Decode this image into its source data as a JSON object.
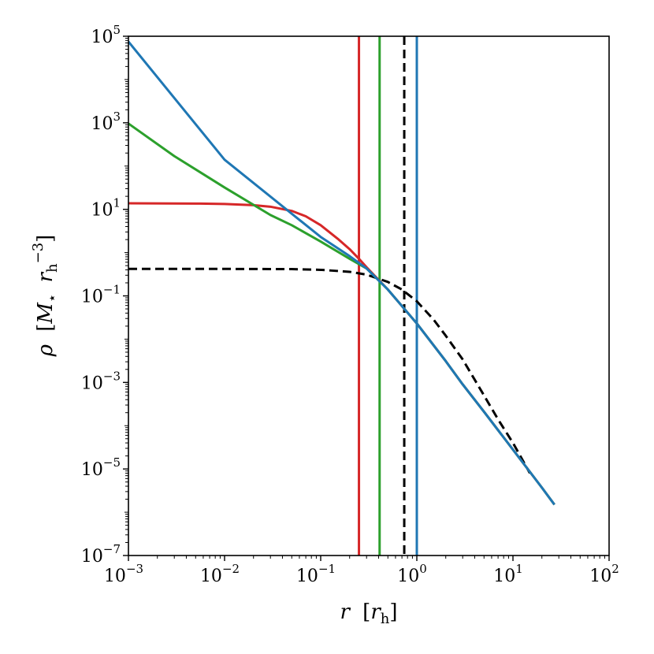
{
  "chart_data": {
    "type": "line",
    "title": "",
    "xlabel": {
      "symbol": "r",
      "unit_symbol": "r",
      "unit_subscript": "h"
    },
    "ylabel": {
      "symbol": "ρ",
      "unit_mass": "M",
      "unit_mass_subscript": "⋆",
      "unit_radius": "r",
      "unit_radius_subscript": "h",
      "unit_radius_power": "−3"
    },
    "xscale": "log",
    "yscale": "log",
    "xlim": [
      0.001,
      100
    ],
    "ylim": [
      1e-07,
      100000
    ],
    "grid": false,
    "xticks": [
      {
        "value": 0.001,
        "base": "10",
        "exp": "−3"
      },
      {
        "value": 0.01,
        "base": "10",
        "exp": "−2"
      },
      {
        "value": 0.1,
        "base": "10",
        "exp": "−1"
      },
      {
        "value": 1,
        "base": "10",
        "exp": "0"
      },
      {
        "value": 10,
        "base": "10",
        "exp": "1"
      },
      {
        "value": 100,
        "base": "10",
        "exp": "2"
      }
    ],
    "yticks": [
      {
        "value": 1e-07,
        "base": "10",
        "exp": "−7"
      },
      {
        "value": 1e-05,
        "base": "10",
        "exp": "−5"
      },
      {
        "value": 0.001,
        "base": "10",
        "exp": "−3"
      },
      {
        "value": 0.1,
        "base": "10",
        "exp": "−1"
      },
      {
        "value": 10,
        "base": "10",
        "exp": "1"
      },
      {
        "value": 1000,
        "base": "10",
        "exp": "3"
      },
      {
        "value": 100000,
        "base": "10",
        "exp": "5"
      }
    ],
    "series": [
      {
        "color": "#000000",
        "style": "dashed",
        "x": [
          0.001,
          0.01,
          0.05,
          0.1,
          0.2,
          0.3,
          0.5,
          0.7,
          1,
          1.5,
          2,
          3,
          5,
          7,
          10,
          15
        ],
        "y": [
          0.42,
          0.42,
          0.415,
          0.4,
          0.36,
          0.31,
          0.21,
          0.14,
          0.075,
          0.028,
          0.012,
          0.0034,
          0.0005,
          0.00014,
          4e-05,
          8e-06
        ]
      },
      {
        "color": "#d62728",
        "style": "solid",
        "x": [
          0.001,
          0.005,
          0.01,
          0.02,
          0.03,
          0.05,
          0.07,
          0.1,
          0.15,
          0.2,
          0.25,
          0.3,
          0.5,
          1,
          2,
          3,
          5,
          10,
          20,
          27
        ],
        "y": [
          13.8,
          13.6,
          13.3,
          12.5,
          11.5,
          9.2,
          6.9,
          4.3,
          2.1,
          1.2,
          0.72,
          0.46,
          0.14,
          0.023,
          0.0031,
          0.0009,
          0.00021,
          2.8e-05,
          3.7e-06,
          1.5e-06
        ]
      },
      {
        "color": "#2ca02c",
        "style": "solid",
        "x": [
          0.001,
          0.003,
          0.01,
          0.03,
          0.05,
          0.1,
          0.2,
          0.3,
          0.5,
          1,
          2,
          3,
          5,
          10,
          20,
          27
        ],
        "y": [
          960,
          170,
          32,
          7.4,
          4.3,
          1.8,
          0.72,
          0.43,
          0.14,
          0.023,
          0.0031,
          0.0009,
          0.00021,
          2.8e-05,
          3.7e-06,
          1.5e-06
        ]
      },
      {
        "color": "#1f77b4",
        "style": "solid",
        "x": [
          0.001,
          0.01,
          0.1,
          0.2,
          0.3,
          0.5,
          1,
          2,
          3,
          5,
          10,
          20,
          27
        ],
        "y": [
          75000,
          140,
          2.3,
          0.83,
          0.43,
          0.14,
          0.023,
          0.0031,
          0.0009,
          0.00021,
          2.8e-05,
          3.7e-06,
          1.5e-06
        ]
      }
    ],
    "vertical_lines": [
      {
        "x": 0.25,
        "color": "#d62728",
        "style": "solid"
      },
      {
        "x": 0.41,
        "color": "#2ca02c",
        "style": "solid"
      },
      {
        "x": 0.74,
        "color": "#000000",
        "style": "dashed"
      },
      {
        "x": 1.0,
        "color": "#1f77b4",
        "style": "solid"
      }
    ]
  }
}
